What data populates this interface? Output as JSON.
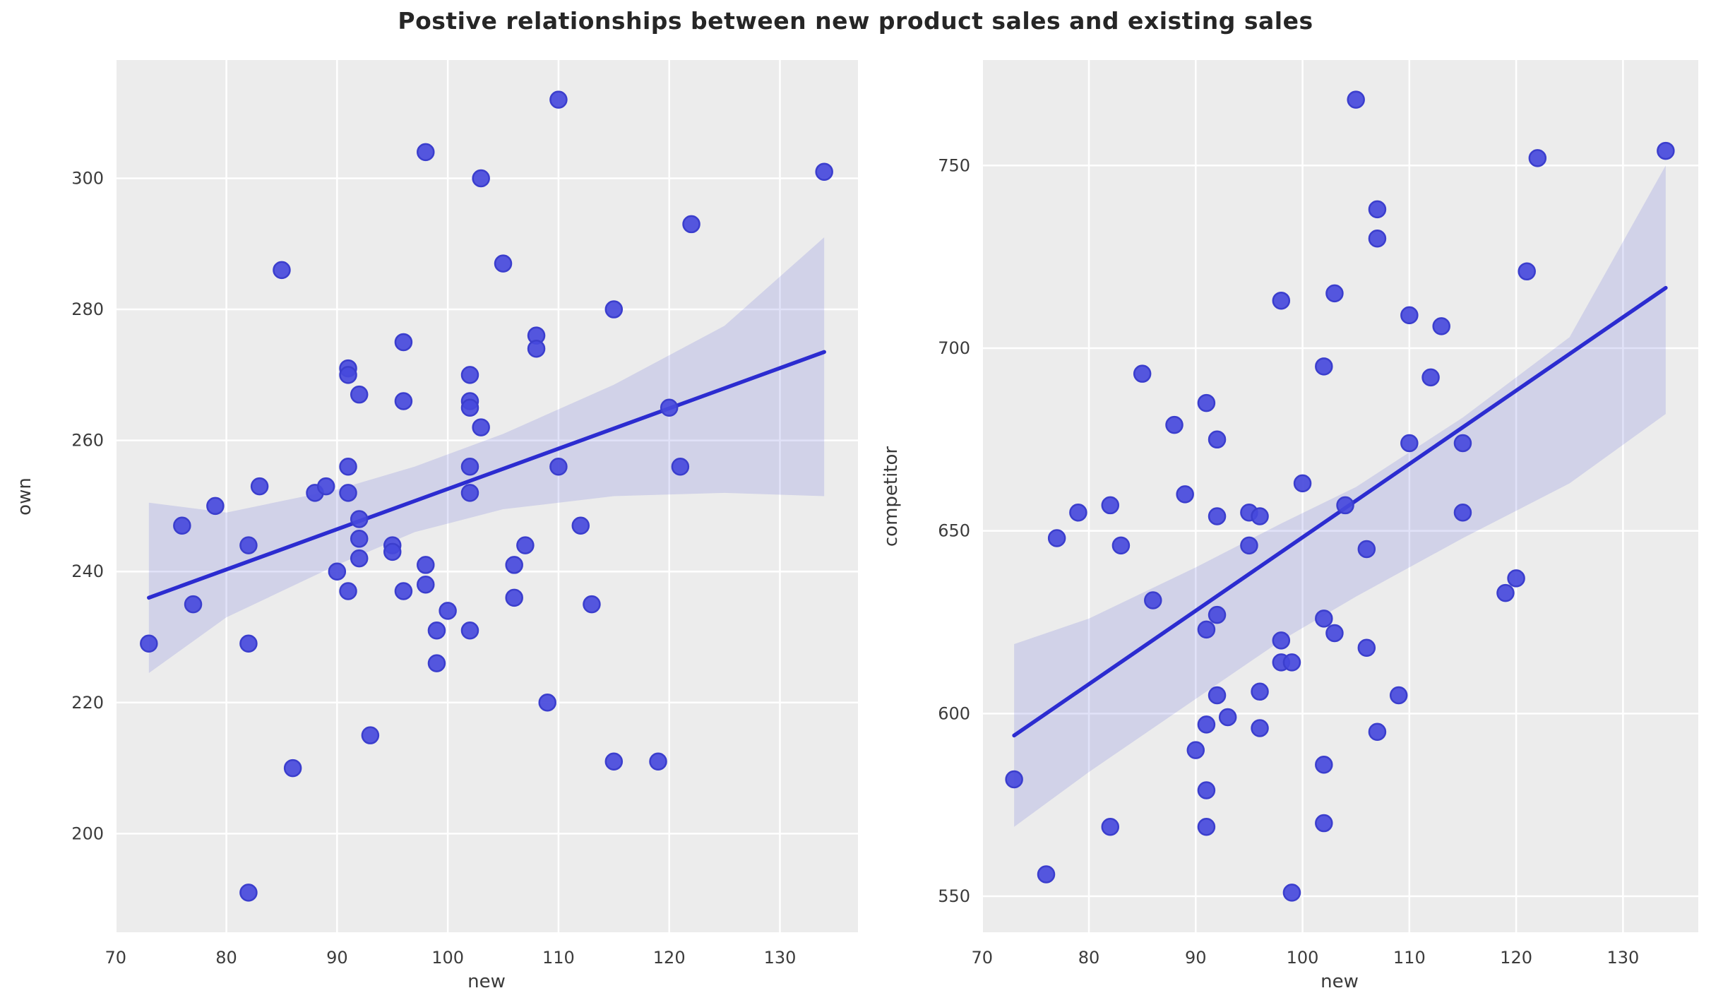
{
  "title": "Postive relationships between new product sales and existing sales",
  "colors": {
    "figure_bg": "#ffffff",
    "axes_bg": "#ececec",
    "grid": "#ffffff",
    "dot_fill": "#4649dc",
    "dot_stroke": "#3b3ecd",
    "line": "#2c2cd0",
    "band": "rgba(79,82,214,0.17)",
    "tick_text": "#3c3c3c",
    "title_text": "#262626"
  },
  "chart_data": [
    {
      "type": "scatter",
      "name": "own-vs-new",
      "xlabel": "new",
      "ylabel": "own",
      "xlim": [
        69.95,
        137.05
      ],
      "ylim": [
        184.95,
        318.05
      ],
      "xticks": [
        70,
        80,
        90,
        100,
        110,
        120,
        130
      ],
      "yticks": [
        200,
        220,
        240,
        260,
        280,
        300
      ],
      "grid": true,
      "points": [
        [
          73,
          229
        ],
        [
          76,
          247
        ],
        [
          77,
          235
        ],
        [
          79,
          250
        ],
        [
          82,
          244
        ],
        [
          82,
          229
        ],
        [
          82,
          191
        ],
        [
          83,
          253
        ],
        [
          85,
          286
        ],
        [
          86,
          210
        ],
        [
          88,
          252
        ],
        [
          89,
          253
        ],
        [
          90,
          240
        ],
        [
          91,
          271
        ],
        [
          91,
          270
        ],
        [
          91,
          256
        ],
        [
          91,
          252
        ],
        [
          91,
          237
        ],
        [
          92,
          267
        ],
        [
          92,
          248
        ],
        [
          92,
          245
        ],
        [
          92,
          242
        ],
        [
          93,
          215
        ],
        [
          95,
          244
        ],
        [
          95,
          243
        ],
        [
          96,
          275
        ],
        [
          96,
          266
        ],
        [
          96,
          237
        ],
        [
          98,
          304
        ],
        [
          98,
          241
        ],
        [
          98,
          238
        ],
        [
          99,
          231
        ],
        [
          99,
          226
        ],
        [
          100,
          234
        ],
        [
          102,
          270
        ],
        [
          102,
          266
        ],
        [
          102,
          265
        ],
        [
          102,
          256
        ],
        [
          102,
          252
        ],
        [
          102,
          231
        ],
        [
          103,
          300
        ],
        [
          103,
          262
        ],
        [
          105,
          287
        ],
        [
          106,
          241
        ],
        [
          106,
          236
        ],
        [
          107,
          244
        ],
        [
          108,
          276
        ],
        [
          108,
          274
        ],
        [
          109,
          220
        ],
        [
          110,
          312
        ],
        [
          110,
          256
        ],
        [
          112,
          247
        ],
        [
          113,
          235
        ],
        [
          115,
          280
        ],
        [
          115,
          211
        ],
        [
          119,
          211
        ],
        [
          120,
          265
        ],
        [
          121,
          256
        ],
        [
          122,
          293
        ],
        [
          134,
          301
        ]
      ],
      "regression": {
        "x1": 73,
        "y1": 236.0,
        "x2": 134,
        "y2": 273.5
      },
      "band": {
        "x": [
          73,
          80,
          90,
          97,
          105,
          115,
          125,
          134
        ],
        "top": [
          250.5,
          249,
          252.5,
          256,
          261,
          268.5,
          277.5,
          291
        ],
        "bottom": [
          224.5,
          233,
          241,
          246,
          249.5,
          251.5,
          252,
          251.5
        ]
      }
    },
    {
      "type": "scatter",
      "name": "competitor-vs-new",
      "xlabel": "new",
      "ylabel": "competitor",
      "xlim": [
        69.95,
        137.05
      ],
      "ylim": [
        540.15,
        778.85
      ],
      "xticks": [
        70,
        80,
        90,
        100,
        110,
        120,
        130
      ],
      "yticks": [
        550,
        600,
        650,
        700,
        750
      ],
      "grid": true,
      "points": [
        [
          73,
          582
        ],
        [
          76,
          556
        ],
        [
          77,
          648
        ],
        [
          79,
          655
        ],
        [
          82,
          657
        ],
        [
          82,
          569
        ],
        [
          83,
          646
        ],
        [
          85,
          693
        ],
        [
          86,
          631
        ],
        [
          88,
          679
        ],
        [
          89,
          660
        ],
        [
          90,
          590
        ],
        [
          91,
          685
        ],
        [
          91,
          623
        ],
        [
          91,
          597
        ],
        [
          91,
          579
        ],
        [
          91,
          569
        ],
        [
          92,
          675
        ],
        [
          92,
          654
        ],
        [
          92,
          627
        ],
        [
          92,
          605
        ],
        [
          93,
          599
        ],
        [
          95,
          655
        ],
        [
          95,
          646
        ],
        [
          96,
          654
        ],
        [
          96,
          606
        ],
        [
          96,
          596
        ],
        [
          98,
          713
        ],
        [
          98,
          620
        ],
        [
          98,
          614
        ],
        [
          99,
          614
        ],
        [
          99,
          551
        ],
        [
          100,
          663
        ],
        [
          102,
          695
        ],
        [
          102,
          626
        ],
        [
          102,
          586
        ],
        [
          102,
          570
        ],
        [
          103,
          715
        ],
        [
          103,
          622
        ],
        [
          104,
          657
        ],
        [
          105,
          768
        ],
        [
          106,
          645
        ],
        [
          106,
          618
        ],
        [
          107,
          738
        ],
        [
          107,
          730
        ],
        [
          107,
          595
        ],
        [
          109,
          605
        ],
        [
          110,
          709
        ],
        [
          110,
          674
        ],
        [
          112,
          692
        ],
        [
          113,
          706
        ],
        [
          115,
          674
        ],
        [
          115,
          655
        ],
        [
          119,
          633
        ],
        [
          120,
          637
        ],
        [
          121,
          721
        ],
        [
          122,
          752
        ],
        [
          134,
          754
        ]
      ],
      "regression": {
        "x1": 73,
        "y1": 594.0,
        "x2": 134,
        "y2": 716.5
      },
      "band": {
        "x": [
          73,
          80,
          90,
          98,
          105,
          115,
          125,
          134
        ],
        "top": [
          619,
          626,
          640,
          652,
          662,
          681,
          703,
          750
        ],
        "bottom": [
          569,
          584,
          604,
          620,
          632,
          648,
          663,
          682
        ]
      }
    }
  ],
  "style": {
    "dot_radius": 11.5,
    "line_width": 5.5,
    "grid_width": 2.5,
    "tick_font_size": 24,
    "tick_label_offset": 34
  }
}
